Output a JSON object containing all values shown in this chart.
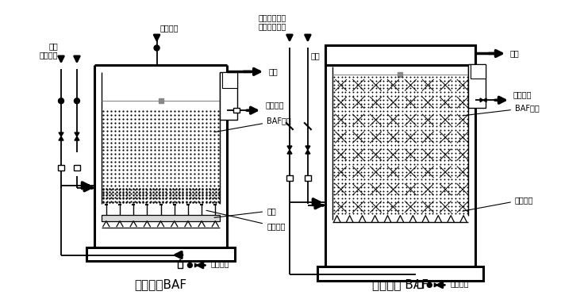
{
  "bg_color": "#ffffff",
  "lc": "#000000",
  "fs_label": 7.0,
  "fs_title": 11,
  "title_left": "陶粒滤料BAF",
  "title_right": "轻质滤料 BAF",
  "L_qiqi": "曝气空气",
  "L_fanxi_kongqi": "反洗\n空气进水",
  "L_chushui": "出水",
  "L_fanxi_paishui": "反洗排水",
  "L_BAF_left": "BAF滤料",
  "L_lvban": "滤板",
  "L_changbing": "长柄滤头",
  "L_fanxi_jin_left": "反洗进水",
  "R_qiqi": "曝气空气备用\n风机开启反洗",
  "R_jinshui": "进水",
  "R_chushui": "出水",
  "R_fanxi_paishui": "反洗排水",
  "R_BAF": "BAF滤料",
  "R_kuangjia": "滤料框架",
  "R_fanxi_jin": "反洗进水"
}
